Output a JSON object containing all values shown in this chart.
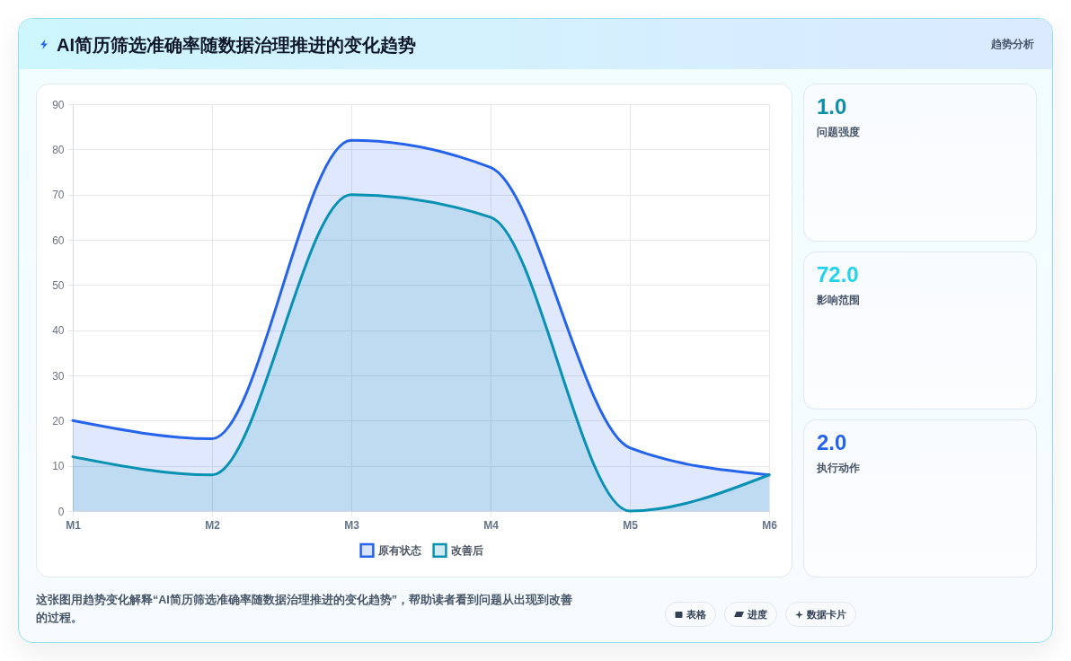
{
  "chart_data": [
    {
      "type": "area",
      "title": "AI简历筛选准确率随数据治理推进的变化趋势",
      "categories": [
        "M1",
        "M2",
        "M3",
        "M4",
        "M5",
        "M6"
      ],
      "series": [
        {
          "name": "原有状态",
          "color": "#2563eb",
          "values": [
            20,
            16,
            82,
            76,
            14,
            8
          ]
        },
        {
          "name": "改善后",
          "color": "#0891b2",
          "values": [
            12,
            8,
            70,
            65,
            0,
            8
          ]
        }
      ],
      "ylim": [
        0,
        90
      ],
      "yticks": [
        0,
        10,
        20,
        30,
        40,
        50,
        60,
        70,
        80,
        90
      ],
      "grid": true,
      "legend": "bottom",
      "annotations": [
        "这张图用趋势变化解释“AI简历筛选准确率随数据治理推进的变化趋势”，帮助读者看到问题从出现到改善的过程。",
        "表格",
        "进度",
        "数据卡片"
      ]
    },
    {
      "type": "other",
      "title": "趋势分析",
      "annotations": [
        "1.0",
        "问题强度",
        "72.0",
        "影响范围",
        "2.0",
        "执行动作"
      ]
    }
  ]
}
